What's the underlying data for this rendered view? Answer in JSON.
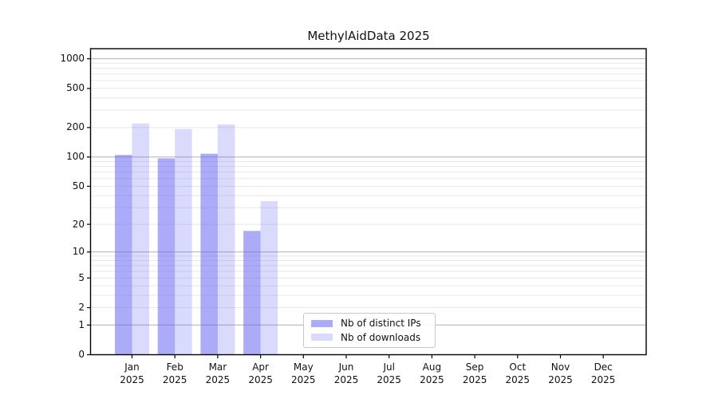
{
  "chart_data": {
    "type": "bar",
    "title": "MethylAidData 2025",
    "categories": [
      "Jan 2025",
      "Feb 2025",
      "Mar 2025",
      "Apr 2025",
      "May 2025",
      "Jun 2025",
      "Jul 2025",
      "Aug 2025",
      "Sep 2025",
      "Oct 2025",
      "Nov 2025",
      "Dec 2025"
    ],
    "series": [
      {
        "name": "Nb of distinct IPs",
        "color": "#6666f2",
        "alpha": 0.55,
        "values": [
          105,
          97,
          108,
          17,
          null,
          null,
          null,
          null,
          null,
          null,
          null,
          null
        ]
      },
      {
        "name": "Nb of downloads",
        "color": "#6666f2",
        "alpha": 0.24,
        "values": [
          220,
          193,
          215,
          35,
          null,
          null,
          null,
          null,
          null,
          null,
          null,
          null
        ]
      }
    ],
    "yscale": "log1p",
    "y_ticks": [
      0,
      1,
      2,
      5,
      10,
      20,
      50,
      100,
      200,
      500,
      1000
    ],
    "ylim": [
      0,
      1273
    ],
    "xlabel": "",
    "ylabel": "",
    "grid": "horizontal",
    "legend_position": "lower-center",
    "colors": {
      "major_grid": "#b0b0b0",
      "minor_grid": "#e8e8e8",
      "spine": "#000000",
      "bar_ips_rendered": "#aaaaf5",
      "bar_downloads_rendered": "#dcdaf8"
    }
  }
}
